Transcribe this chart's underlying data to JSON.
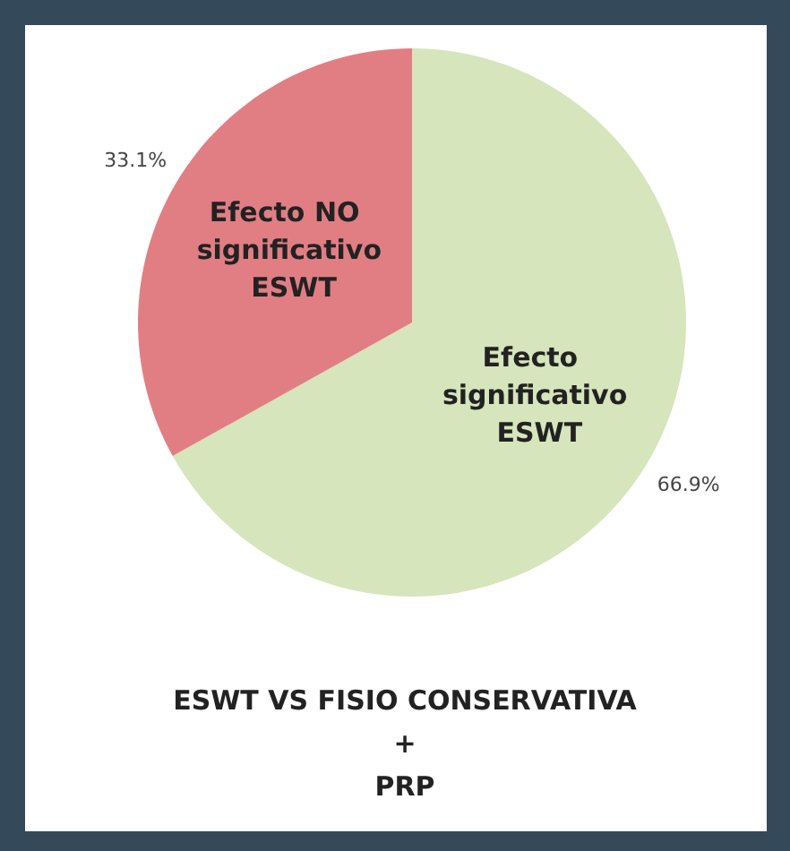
{
  "chart_data": {
    "type": "pie",
    "title": "ESWT VS FISIO CONSERVATIVA\n+\nPRP",
    "categories": [
      "Efecto significativo ESWT",
      "Efecto NO significativo ESWT"
    ],
    "values": [
      66.9,
      33.1
    ],
    "value_labels": [
      "66.9%",
      "33.1%"
    ],
    "colors": [
      "#d6e5bb",
      "#e17e84"
    ],
    "legend": false
  }
}
